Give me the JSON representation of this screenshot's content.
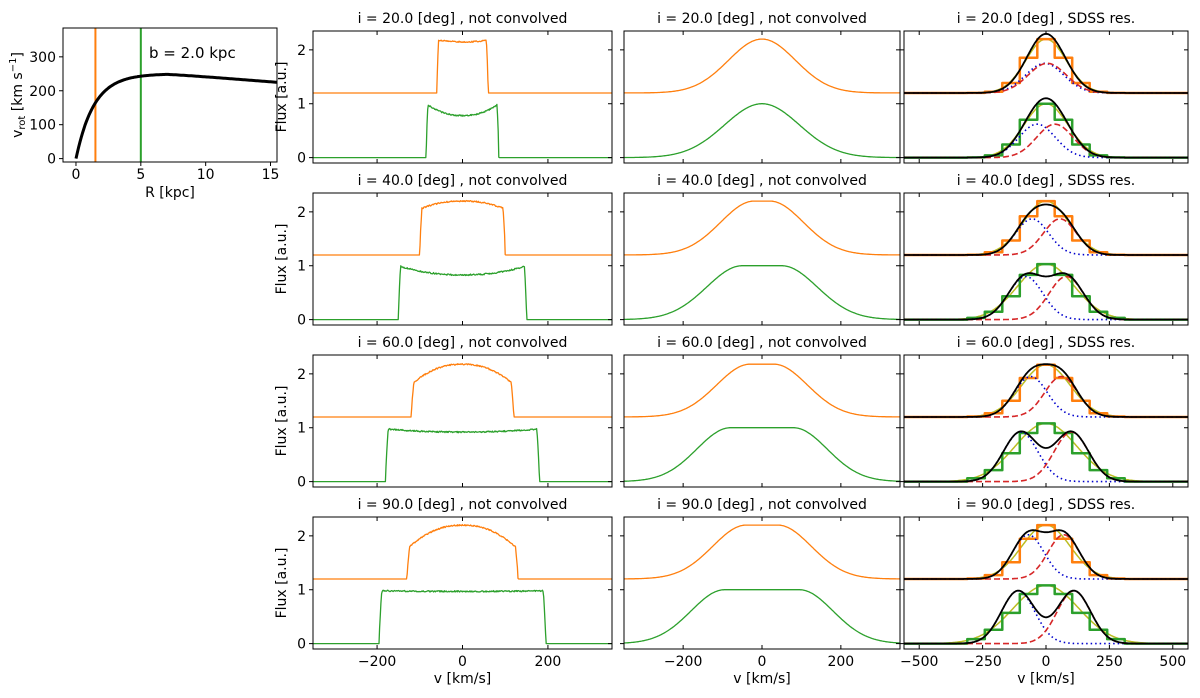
{
  "figure_colors": {
    "orange": "#ff7f0e",
    "green": "#2ca02c",
    "red": "#d62728",
    "blue": "#0000cc",
    "olive": "#bcbd22",
    "black": "#000000"
  },
  "chart_data": [
    {
      "id": "rotation-curve",
      "type": "line",
      "title": "",
      "xlabel": "R [kpc]",
      "ylabel_main": "v",
      "ylabel_sub": "rot",
      "ylabel_rest": " [km s",
      "ylabel_exp": "−1",
      "ylabel_end": "]",
      "xlim": [
        -1,
        15.5
      ],
      "ylim": [
        -10,
        385
      ],
      "xticks": [
        0,
        5,
        10,
        15
      ],
      "yticks": [
        0,
        100,
        200,
        300
      ],
      "annotation": "b = 2.0 kpc",
      "vlines": [
        {
          "x": 1.5,
          "color": "orange"
        },
        {
          "x": 5.0,
          "color": "green"
        }
      ],
      "curve": {
        "model": "vmax*(1-exp(-R/rs)) with slow decline",
        "vmax": 250,
        "rs": 1.4,
        "r_peak": 7,
        "v_at_15_5": 225
      }
    },
    {
      "type": "line",
      "kind": "intrinsic",
      "row": 0,
      "col": 0,
      "title": "i = 20.0 [deg] , not convolved",
      "inclination": 20,
      "xlim": [
        -350,
        350
      ],
      "xticks": [
        -200,
        0,
        200
      ],
      "ylim": [
        -0.1,
        2.35
      ],
      "yticks": [
        0,
        1,
        2
      ],
      "ylabel": "Flux [a.u.]",
      "xlabel": "",
      "series": [
        {
          "name": "inner (orange)",
          "color": "orange",
          "baseline": 1.2,
          "half_width": 60,
          "edge": 4,
          "edge_height": 0.98,
          "center_height": 0.95
        },
        {
          "name": "outer (green)",
          "color": "green",
          "baseline": 0,
          "half_width": 85,
          "edge": 4,
          "edge_height": 1.0,
          "center_height": 0.78
        }
      ]
    },
    {
      "type": "line",
      "kind": "intrinsic",
      "row": 1,
      "col": 0,
      "title": "i = 40.0 [deg] , not convolved",
      "inclination": 40,
      "xlim": [
        -350,
        350
      ],
      "xticks": [
        -200,
        0,
        200
      ],
      "ylim": [
        -0.1,
        2.35
      ],
      "yticks": [
        0,
        1,
        2
      ],
      "ylabel": "Flux [a.u.]",
      "xlabel": "",
      "series": [
        {
          "name": "inner (orange)",
          "color": "orange",
          "baseline": 1.2,
          "half_width": 100,
          "edge": 5,
          "edge_height": 0.85,
          "center_height": 1.0
        },
        {
          "name": "outer (green)",
          "color": "green",
          "baseline": 0,
          "half_width": 150,
          "edge": 5,
          "edge_height": 1.0,
          "center_height": 0.83
        }
      ]
    },
    {
      "type": "line",
      "kind": "intrinsic",
      "row": 2,
      "col": 0,
      "title": "i = 60.0 [deg] , not convolved",
      "inclination": 60,
      "xlim": [
        -350,
        350
      ],
      "xticks": [
        -200,
        0,
        200
      ],
      "ylim": [
        -0.1,
        2.35
      ],
      "yticks": [
        0,
        1,
        2
      ],
      "ylabel": "Flux [a.u.]",
      "xlabel": "",
      "series": [
        {
          "name": "inner (orange)",
          "color": "orange",
          "baseline": 1.2,
          "half_width": 120,
          "edge": 6,
          "edge_height": 0.6,
          "center_height": 0.98
        },
        {
          "name": "outer (green)",
          "color": "green",
          "baseline": 0,
          "half_width": 180,
          "edge": 6,
          "edge_height": 0.98,
          "center_height": 0.92
        }
      ]
    },
    {
      "type": "line",
      "kind": "intrinsic",
      "row": 3,
      "col": 0,
      "title": "i = 90.0 [deg] , not convolved",
      "inclination": 90,
      "xlim": [
        -350,
        350
      ],
      "xticks": [
        -200,
        0,
        200
      ],
      "ylim": [
        -0.1,
        2.35
      ],
      "yticks": [
        0,
        1,
        2
      ],
      "ylabel": "Flux [a.u.]",
      "xlabel": "v [km/s]",
      "series": [
        {
          "name": "inner (orange)",
          "color": "orange",
          "baseline": 1.2,
          "half_width": 130,
          "edge": 6,
          "edge_height": 0.55,
          "center_height": 1.0
        },
        {
          "name": "outer (green)",
          "color": "green",
          "baseline": 0,
          "half_width": 195,
          "edge": 6,
          "edge_height": 0.98,
          "center_height": 0.97
        }
      ]
    },
    {
      "type": "line",
      "kind": "smoothed",
      "row": 0,
      "col": 1,
      "title": "i = 20.0 [deg] , not convolved",
      "inclination": 20,
      "xlim": [
        -350,
        350
      ],
      "xticks": [
        -200,
        0,
        200
      ],
      "ylim": [
        -0.1,
        2.35
      ],
      "yticks": [
        0,
        1,
        2
      ],
      "ylabel": "",
      "xlabel": "",
      "series": [
        {
          "name": "inner (orange)",
          "color": "orange",
          "baseline": 1.2,
          "peak": 1.0,
          "flat": 0,
          "sigma": 85
        },
        {
          "name": "outer (green)",
          "color": "green",
          "baseline": 0,
          "peak": 1.0,
          "flat": 0,
          "sigma": 95
        }
      ]
    },
    {
      "type": "line",
      "kind": "smoothed",
      "row": 1,
      "col": 1,
      "title": "i = 40.0 [deg] , not convolved",
      "inclination": 40,
      "xlim": [
        -350,
        350
      ],
      "xticks": [
        -200,
        0,
        200
      ],
      "ylim": [
        -0.1,
        2.35
      ],
      "yticks": [
        0,
        1,
        2
      ],
      "ylabel": "",
      "xlabel": "",
      "series": [
        {
          "name": "inner (orange)",
          "color": "orange",
          "baseline": 1.2,
          "peak": 1.0,
          "flat": 20,
          "sigma": 85
        },
        {
          "name": "outer (green)",
          "color": "green",
          "baseline": 0,
          "peak": 1.0,
          "flat": 50,
          "sigma": 90
        }
      ]
    },
    {
      "type": "line",
      "kind": "smoothed",
      "row": 2,
      "col": 1,
      "title": "i = 60.0 [deg] , not convolved",
      "inclination": 60,
      "xlim": [
        -350,
        350
      ],
      "xticks": [
        -200,
        0,
        200
      ],
      "ylim": [
        -0.1,
        2.35
      ],
      "yticks": [
        0,
        1,
        2
      ],
      "ylabel": "",
      "xlabel": "",
      "series": [
        {
          "name": "inner (orange)",
          "color": "orange",
          "baseline": 1.2,
          "peak": 0.98,
          "flat": 30,
          "sigma": 85
        },
        {
          "name": "outer (green)",
          "color": "green",
          "baseline": 0,
          "peak": 1.0,
          "flat": 80,
          "sigma": 85
        }
      ]
    },
    {
      "type": "line",
      "kind": "smoothed",
      "row": 3,
      "col": 1,
      "title": "i = 90.0 [deg] , not convolved",
      "inclination": 90,
      "xlim": [
        -350,
        350
      ],
      "xticks": [
        -200,
        0,
        200
      ],
      "ylim": [
        -0.1,
        2.35
      ],
      "yticks": [
        0,
        1,
        2
      ],
      "ylabel": "",
      "xlabel": "v [km/s]",
      "series": [
        {
          "name": "inner (orange)",
          "color": "orange",
          "baseline": 1.2,
          "peak": 1.0,
          "flat": 40,
          "sigma": 85
        },
        {
          "name": "outer (green)",
          "color": "green",
          "baseline": 0,
          "peak": 1.0,
          "flat": 95,
          "sigma": 85
        }
      ]
    },
    {
      "type": "line",
      "kind": "sdss",
      "row": 0,
      "col": 2,
      "title": "i = 20.0 [deg] , SDSS res.",
      "inclination": 20,
      "xlim": [
        -560,
        560
      ],
      "xticks": [
        -500,
        -250,
        0,
        250,
        500
      ],
      "ylim": [
        -0.1,
        2.35
      ],
      "yticks": [
        0,
        1,
        2
      ],
      "ylabel": "",
      "xlabel": "",
      "bin_width": 69,
      "profiles": [
        {
          "name": "inner",
          "color": "orange",
          "baseline": 1.2,
          "peak": 1.0,
          "sigma": 75,
          "gauss_a": 0.55,
          "gauss_b": 0.55,
          "gauss_sep": 5,
          "gauss_sigma": 75
        },
        {
          "name": "outer",
          "color": "green",
          "baseline": 0,
          "peak": 1.0,
          "sigma": 82,
          "gauss_a": 0.62,
          "gauss_b": 0.62,
          "gauss_sep": 35,
          "gauss_sigma": 72
        }
      ]
    },
    {
      "type": "line",
      "kind": "sdss",
      "row": 1,
      "col": 2,
      "title": "i = 40.0 [deg] , SDSS res.",
      "inclination": 40,
      "xlim": [
        -560,
        560
      ],
      "xticks": [
        -500,
        -250,
        0,
        250,
        500
      ],
      "ylim": [
        -0.1,
        2.35
      ],
      "yticks": [
        0,
        1,
        2
      ],
      "ylabel": "",
      "xlabel": "",
      "bin_width": 69,
      "profiles": [
        {
          "name": "inner",
          "color": "orange",
          "baseline": 1.2,
          "peak": 1.0,
          "sigma": 85,
          "gauss_a": 0.67,
          "gauss_b": 0.67,
          "gauss_sep": 55,
          "gauss_sigma": 65
        },
        {
          "name": "outer",
          "color": "green",
          "baseline": 0,
          "peak": 1.03,
          "sigma": 105,
          "gauss_a": 0.8,
          "gauss_b": 0.8,
          "gauss_sep": 80,
          "gauss_sigma": 68
        }
      ]
    },
    {
      "type": "line",
      "kind": "sdss",
      "row": 2,
      "col": 2,
      "title": "i = 60.0 [deg] , SDSS res.",
      "inclination": 60,
      "xlim": [
        -560,
        560
      ],
      "xticks": [
        -500,
        -250,
        0,
        250,
        500
      ],
      "ylim": [
        -0.1,
        2.35
      ],
      "yticks": [
        0,
        1,
        2
      ],
      "ylabel": "",
      "xlabel": "",
      "bin_width": 69,
      "profiles": [
        {
          "name": "inner",
          "color": "orange",
          "baseline": 1.2,
          "peak": 0.97,
          "sigma": 90,
          "gauss_a": 0.75,
          "gauss_b": 0.75,
          "gauss_sep": 60,
          "gauss_sigma": 65
        },
        {
          "name": "outer",
          "color": "green",
          "baseline": 0,
          "peak": 1.08,
          "sigma": 115,
          "gauss_a": 0.92,
          "gauss_b": 0.92,
          "gauss_sep": 100,
          "gauss_sigma": 68
        }
      ]
    },
    {
      "type": "line",
      "kind": "sdss",
      "row": 3,
      "col": 2,
      "title": "i = 90.0 [deg] , SDSS res.",
      "inclination": 90,
      "xlim": [
        -560,
        560
      ],
      "xticks": [
        -500,
        -250,
        0,
        250,
        500
      ],
      "ylim": [
        -0.1,
        2.35
      ],
      "yticks": [
        0,
        1,
        2
      ],
      "ylabel": "",
      "xlabel": "v [km/s]",
      "bin_width": 69,
      "profiles": [
        {
          "name": "inner",
          "color": "orange",
          "baseline": 1.2,
          "peak": 1.0,
          "sigma": 90,
          "gauss_a": 0.82,
          "gauss_b": 0.82,
          "gauss_sep": 70,
          "gauss_sigma": 62
        },
        {
          "name": "outer",
          "color": "green",
          "baseline": 0,
          "peak": 1.08,
          "sigma": 122,
          "gauss_a": 0.98,
          "gauss_b": 0.98,
          "gauss_sep": 110,
          "gauss_sigma": 66
        }
      ]
    }
  ]
}
